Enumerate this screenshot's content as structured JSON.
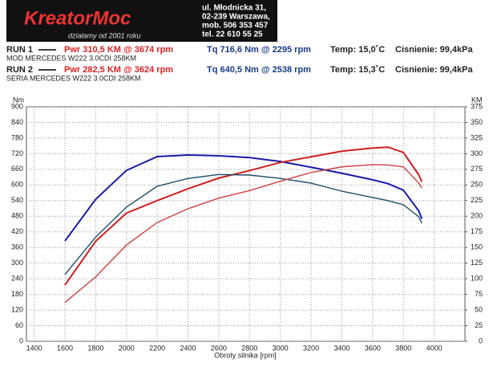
{
  "header": {
    "logo": "KreatorMoc",
    "tagline": "działamy od 2001 roku",
    "address": [
      "ul. Młodnicka 31,",
      "02-239  Warszawa,",
      "mob.  506 353 457",
      "tel.  22 610 55 25"
    ]
  },
  "runs": [
    {
      "label": "RUN 1",
      "pwr": "Pwr  310,5 KM @ 3674 rpm",
      "tq": "Tq 716,6 Nm @ 2295 rpm",
      "temp": "Temp: 15,0˚C",
      "pressure": "Cisnienie: 99,4kPa",
      "description": "MOD MERCEDES W222 3.0CDI 258KM"
    },
    {
      "label": "RUN 2",
      "pwr": "Pwr  282,5 KM @ 3624 rpm",
      "tq": "Tq 640,5 Nm @ 2538 rpm",
      "temp": "Temp: 15,3˚C",
      "pressure": "Cisnienie: 99,4kPa",
      "description": "SERIA MERCEDES W222 3.0CDI 258KM"
    }
  ],
  "chart_data": {
    "type": "line",
    "xlabel": "Obroty silnika [rpm]",
    "ylabel": "Nm",
    "y2label": "KM",
    "x": [
      1600,
      1800,
      2000,
      2200,
      2400,
      2600,
      2800,
      3000,
      3200,
      3400,
      3600,
      3700,
      3800,
      3900,
      3920
    ],
    "xlim": [
      1350,
      4200
    ],
    "xticks": [
      1400,
      1600,
      1800,
      2000,
      2200,
      2400,
      2600,
      2800,
      3000,
      3200,
      3400,
      3600,
      3800,
      4000
    ],
    "ylim": [
      0,
      900
    ],
    "yticks": [
      0,
      60,
      120,
      180,
      240,
      300,
      360,
      420,
      480,
      540,
      600,
      660,
      720,
      780,
      840,
      900
    ],
    "y2lim": [
      0,
      375
    ],
    "y2ticks": [
      0,
      25,
      50,
      75,
      100,
      125,
      150,
      175,
      200,
      225,
      250,
      275,
      300,
      325,
      350,
      375
    ],
    "grid": true,
    "series": [
      {
        "name": "RUN 1",
        "color": "#1a1aa8",
        "values": [
          385,
          545,
          656,
          709,
          715,
          712,
          705,
          690,
          668,
          645,
          620,
          605,
          580,
          500,
          470
        ]
      },
      {
        "name": "RUN 1",
        "color": "#cc1f1f",
        "axis": "y2",
        "values": [
          90,
          160,
          205,
          225,
          244,
          261,
          273,
          286,
          295,
          304,
          309,
          310.5,
          302,
          266,
          255
        ]
      },
      {
        "name": "RUN 2",
        "color": "#1f4f6a",
        "values": [
          256,
          400,
          515,
          595,
          625,
          640,
          638,
          625,
          607,
          576,
          552,
          540,
          524,
          478,
          453
        ]
      },
      {
        "name": "RUN 2",
        "color": "#d04040",
        "axis": "y2",
        "values": [
          62,
          103,
          154,
          190,
          212,
          229,
          241,
          256,
          270,
          279,
          282.5,
          282,
          279,
          253,
          245
        ]
      }
    ]
  }
}
